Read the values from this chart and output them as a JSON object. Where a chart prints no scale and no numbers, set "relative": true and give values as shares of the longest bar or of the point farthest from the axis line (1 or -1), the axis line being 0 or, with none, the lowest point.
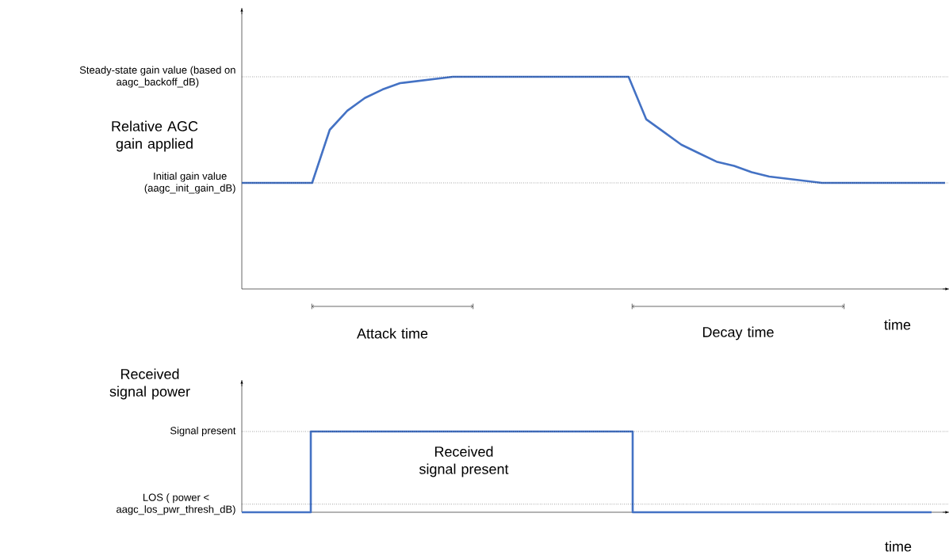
{
  "chart_data": [
    {
      "type": "line",
      "ylabel": "Relative AGC gain applied",
      "xlabel": "time",
      "relative": true,
      "categories": [
        null,
        null,
        null,
        null,
        null,
        null,
        null,
        null,
        null,
        null,
        null,
        null,
        null,
        null,
        null,
        null,
        null,
        null,
        null,
        null,
        null,
        null,
        null,
        null,
        null,
        null,
        null,
        null,
        null,
        null,
        null,
        null,
        null,
        null,
        null,
        null,
        null,
        null,
        null,
        null,
        null
      ],
      "series": [
        {
          "color": "#4472c4",
          "values": [
            0.5,
            0.5,
            0.5,
            0.5,
            0.5,
            0.75,
            0.84,
            0.9,
            0.94,
            0.97,
            0.98,
            0.99,
            1,
            1,
            1,
            1,
            1,
            1,
            1,
            1,
            1,
            1,
            1,
            0.8,
            0.74,
            0.68,
            0.64,
            0.6,
            0.58,
            0.55,
            0.53,
            0.52,
            0.51,
            0.5,
            0.5,
            0.5,
            0.5,
            0.5,
            0.5,
            0.5,
            0.5
          ]
        }
      ],
      "ref_lines": [
        {
          "axis": "y",
          "value": 1,
          "label": "Steady-state gain value (based on aagc_backoff_dB)",
          "line_style": "dotted"
        },
        {
          "axis": "y",
          "value": 0.5,
          "label": "Initial gain value (aagc_init_gain_dB)",
          "line_style": "dotted"
        }
      ],
      "annotations": [
        "Attack time",
        "Decay time"
      ]
    },
    {
      "type": "step",
      "ylabel": "Received signal power",
      "xlabel": "time",
      "relative": true,
      "categories": [
        null,
        null,
        null,
        null,
        null,
        null,
        null,
        null,
        null,
        null,
        null,
        null,
        null,
        null,
        null,
        null,
        null,
        null,
        null,
        null,
        null,
        null,
        null,
        null,
        null,
        null,
        null,
        null,
        null,
        null,
        null
      ],
      "series": [
        {
          "color": "#4472c4",
          "values": [
            0,
            0,
            0,
            1,
            1,
            1,
            1,
            1,
            1,
            1,
            1,
            1,
            1,
            1,
            1,
            1,
            1,
            0,
            0,
            0,
            0,
            0,
            0,
            0,
            0,
            0,
            0,
            0,
            0,
            0,
            0
          ]
        }
      ],
      "ref_lines": [
        {
          "axis": "y",
          "value": 1,
          "label": "Signal present",
          "line_style": "dotted"
        },
        {
          "axis": "y",
          "value": 0.1,
          "label": "LOS ( power < aagc_los_pwr_thresh_dB)",
          "line_style": "dotted"
        }
      ],
      "annotations": [
        "Received signal present"
      ]
    }
  ]
}
